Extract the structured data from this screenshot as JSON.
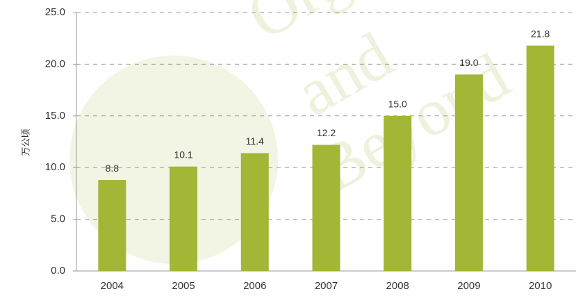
{
  "chart_data": {
    "type": "bar",
    "y_label": "万公顷",
    "watermark": [
      "Organic",
      "and",
      "Beyond"
    ],
    "categories": [
      "2004",
      "2005",
      "2006",
      "2007",
      "2008",
      "2009",
      "2010"
    ],
    "values": [
      8.8,
      10.1,
      11.4,
      12.2,
      15.0,
      19.0,
      21.8
    ],
    "value_labels": [
      "8.8",
      "10.1",
      "11.4",
      "12.2",
      "15.0",
      "19.0",
      "21.8"
    ],
    "color": "#a3b636",
    "ylim": [
      0,
      25
    ],
    "yticks": [
      {
        "value": 0,
        "label": "0.0"
      },
      {
        "value": 5,
        "label": "5.0"
      },
      {
        "value": 10,
        "label": "10.0"
      },
      {
        "value": 15,
        "label": "15.0"
      },
      {
        "value": 20,
        "label": "20.0"
      },
      {
        "value": 25,
        "label": "25.0"
      }
    ],
    "grid": true
  }
}
